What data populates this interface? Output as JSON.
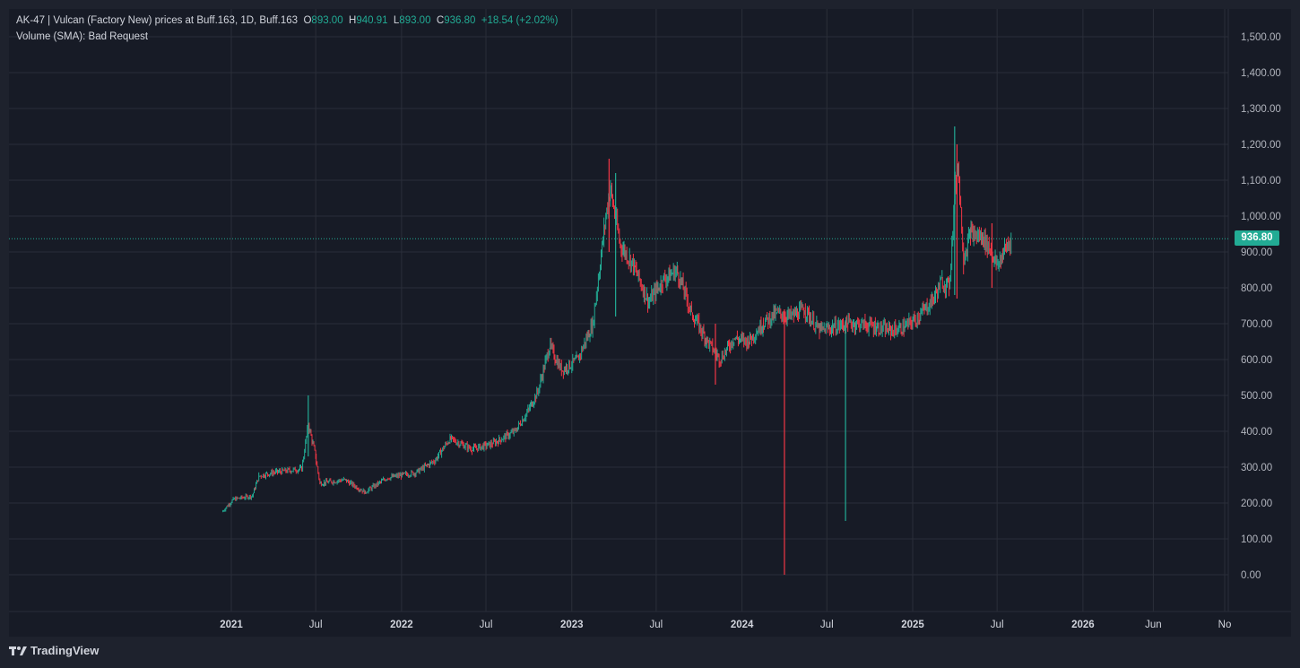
{
  "legend": {
    "title": "AK-47 | Vulcan (Factory New) prices at Buff.163, 1D, Buff.163",
    "open_label": "O",
    "open": "893.00",
    "high_label": "H",
    "high": "940.91",
    "low_label": "L",
    "low": "893.00",
    "close_label": "C",
    "close": "936.80",
    "change": "+18.54 (+2.02%)",
    "volume": "Volume (SMA): Bad Request"
  },
  "current_price": "936.80",
  "brand": "TradingView",
  "colors": {
    "up": "#22ab94",
    "down": "#f23645",
    "background": "#171b26",
    "grid": "#2a2e39"
  },
  "chart_data": {
    "type": "candlestick",
    "title": "AK-47 | Vulcan (Factory New) prices at Buff.163",
    "interval": "1D",
    "ylim": [
      0,
      1500
    ],
    "yticks": [
      0,
      100,
      200,
      300,
      400,
      500,
      600,
      700,
      800,
      900,
      1000,
      1100,
      1200,
      1300,
      1400,
      1500
    ],
    "ytick_labels": [
      "0.00",
      "100.00",
      "200.00",
      "300.00",
      "400.00",
      "500.00",
      "600.00",
      "700.00",
      "800.00",
      "900.00",
      "1,000.00",
      "1,100.00",
      "1,200.00",
      "1,300.00",
      "1,400.00",
      "1,500.00"
    ],
    "xticks": [
      {
        "label": "2021",
        "date": "2021-01-01",
        "major": true
      },
      {
        "label": "Jul",
        "date": "2021-07-01",
        "major": false
      },
      {
        "label": "2022",
        "date": "2022-01-01",
        "major": true
      },
      {
        "label": "Jul",
        "date": "2022-07-01",
        "major": false
      },
      {
        "label": "2023",
        "date": "2023-01-01",
        "major": true
      },
      {
        "label": "Jul",
        "date": "2023-07-01",
        "major": false
      },
      {
        "label": "2024",
        "date": "2024-01-01",
        "major": true
      },
      {
        "label": "Jul",
        "date": "2024-07-01",
        "major": false
      },
      {
        "label": "2025",
        "date": "2025-01-01",
        "major": true
      },
      {
        "label": "Jul",
        "date": "2025-07-01",
        "major": false
      },
      {
        "label": "2026",
        "date": "2026-01-01",
        "major": true
      },
      {
        "label": "Jun",
        "date": "2026-06-01",
        "major": false
      },
      {
        "label": "No",
        "date": "2026-11-01",
        "major": false
      }
    ],
    "last_close": 936.8,
    "series": [
      {
        "date": "2020-12-12",
        "close": 175
      },
      {
        "date": "2021-01-05",
        "close": 210
      },
      {
        "date": "2021-02-15",
        "close": 220
      },
      {
        "date": "2021-03-01",
        "close": 275
      },
      {
        "date": "2021-04-01",
        "close": 285
      },
      {
        "date": "2021-06-01",
        "close": 295
      },
      {
        "date": "2021-06-15",
        "close": 420
      },
      {
        "date": "2021-07-01",
        "close": 330
      },
      {
        "date": "2021-07-10",
        "close": 255
      },
      {
        "date": "2021-09-01",
        "close": 265
      },
      {
        "date": "2021-10-15",
        "close": 230
      },
      {
        "date": "2021-12-01",
        "close": 270
      },
      {
        "date": "2022-02-01",
        "close": 285
      },
      {
        "date": "2022-03-15",
        "close": 320
      },
      {
        "date": "2022-04-15",
        "close": 380
      },
      {
        "date": "2022-06-01",
        "close": 350
      },
      {
        "date": "2022-07-15",
        "close": 365
      },
      {
        "date": "2022-09-01",
        "close": 400
      },
      {
        "date": "2022-10-01",
        "close": 460
      },
      {
        "date": "2022-10-20",
        "close": 510
      },
      {
        "date": "2022-11-15",
        "close": 640
      },
      {
        "date": "2022-12-10",
        "close": 570
      },
      {
        "date": "2023-01-15",
        "close": 600
      },
      {
        "date": "2023-02-15",
        "close": 700
      },
      {
        "date": "2023-03-15",
        "close": 1000
      },
      {
        "date": "2023-03-25",
        "close": 1080
      },
      {
        "date": "2023-04-15",
        "close": 920
      },
      {
        "date": "2023-05-15",
        "close": 860
      },
      {
        "date": "2023-06-15",
        "close": 760
      },
      {
        "date": "2023-07-15",
        "close": 820
      },
      {
        "date": "2023-08-15",
        "close": 850
      },
      {
        "date": "2023-09-15",
        "close": 730
      },
      {
        "date": "2023-10-15",
        "close": 660
      },
      {
        "date": "2023-11-15",
        "close": 600
      },
      {
        "date": "2023-12-15",
        "close": 660
      },
      {
        "date": "2024-01-15",
        "close": 650
      },
      {
        "date": "2024-02-15",
        "close": 700
      },
      {
        "date": "2024-03-15",
        "close": 730
      },
      {
        "date": "2024-04-15",
        "close": 720
      },
      {
        "date": "2024-05-15",
        "close": 740
      },
      {
        "date": "2024-06-15",
        "close": 680
      },
      {
        "date": "2024-07-15",
        "close": 690
      },
      {
        "date": "2024-08-15",
        "close": 700
      },
      {
        "date": "2024-09-15",
        "close": 700
      },
      {
        "date": "2024-10-15",
        "close": 690
      },
      {
        "date": "2024-11-15",
        "close": 680
      },
      {
        "date": "2024-12-15",
        "close": 690
      },
      {
        "date": "2025-01-15",
        "close": 720
      },
      {
        "date": "2025-02-15",
        "close": 770
      },
      {
        "date": "2025-03-05",
        "close": 820
      },
      {
        "date": "2025-03-20",
        "close": 800
      },
      {
        "date": "2025-04-01",
        "close": 1050
      },
      {
        "date": "2025-04-08",
        "close": 1150
      },
      {
        "date": "2025-04-20",
        "close": 880
      },
      {
        "date": "2025-05-05",
        "close": 950
      },
      {
        "date": "2025-06-01",
        "close": 940
      },
      {
        "date": "2025-06-20",
        "close": 900
      },
      {
        "date": "2025-07-01",
        "close": 860
      },
      {
        "date": "2025-07-15",
        "close": 900
      },
      {
        "date": "2025-07-31",
        "close": 936.8
      }
    ],
    "spikes": [
      {
        "date": "2021-06-15",
        "high": 500,
        "low": 330,
        "dir": "up"
      },
      {
        "date": "2023-03-22",
        "high": 1160,
        "low": 900,
        "dir": "down"
      },
      {
        "date": "2023-04-05",
        "high": 1120,
        "low": 720,
        "dir": "up"
      },
      {
        "date": "2023-11-05",
        "high": 700,
        "low": 530,
        "dir": "down"
      },
      {
        "date": "2024-04-01",
        "high": 740,
        "low": 0,
        "dir": "down"
      },
      {
        "date": "2024-08-10",
        "high": 710,
        "low": 150,
        "dir": "up"
      },
      {
        "date": "2025-04-01",
        "high": 1250,
        "low": 780,
        "dir": "up"
      },
      {
        "date": "2025-04-06",
        "high": 1200,
        "low": 770,
        "dir": "down"
      },
      {
        "date": "2025-06-20",
        "high": 980,
        "low": 800,
        "dir": "down"
      }
    ]
  }
}
